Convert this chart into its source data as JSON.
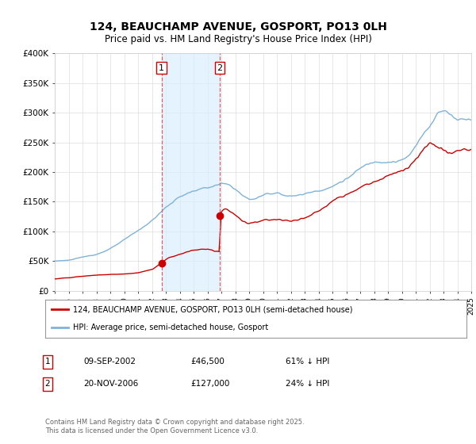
{
  "title": "124, BEAUCHAMP AVENUE, GOSPORT, PO13 0LH",
  "subtitle": "Price paid vs. HM Land Registry's House Price Index (HPI)",
  "ylabel_ticks": [
    "£0",
    "£50K",
    "£100K",
    "£150K",
    "£200K",
    "£250K",
    "£300K",
    "£350K",
    "£400K"
  ],
  "ytick_vals": [
    0,
    50000,
    100000,
    150000,
    200000,
    250000,
    300000,
    350000,
    400000
  ],
  "ylim": [
    0,
    400000
  ],
  "xlim_years": [
    1995,
    2025
  ],
  "marker1_date": "09-SEP-2002",
  "marker1_price": "£46,500",
  "marker1_hpi": "61% ↓ HPI",
  "marker1_year": 2002.69,
  "marker1_value": 46500,
  "marker2_date": "20-NOV-2006",
  "marker2_price": "£127,000",
  "marker2_hpi": "24% ↓ HPI",
  "marker2_year": 2006.89,
  "marker2_value": 127000,
  "shade_color": "#daeeff",
  "shade_alpha": 0.7,
  "dashed_color": "#e06060",
  "red_line_color": "#cc0000",
  "blue_line_color": "#7fb3d8",
  "legend_label_red": "124, BEAUCHAMP AVENUE, GOSPORT, PO13 0LH (semi-detached house)",
  "legend_label_blue": "HPI: Average price, semi-detached house, Gosport",
  "footer": "Contains HM Land Registry data © Crown copyright and database right 2025.\nThis data is licensed under the Open Government Licence v3.0.",
  "background_color": "#ffffff",
  "grid_color": "#dddddd",
  "title_fontsize": 10,
  "subtitle_fontsize": 8.5
}
